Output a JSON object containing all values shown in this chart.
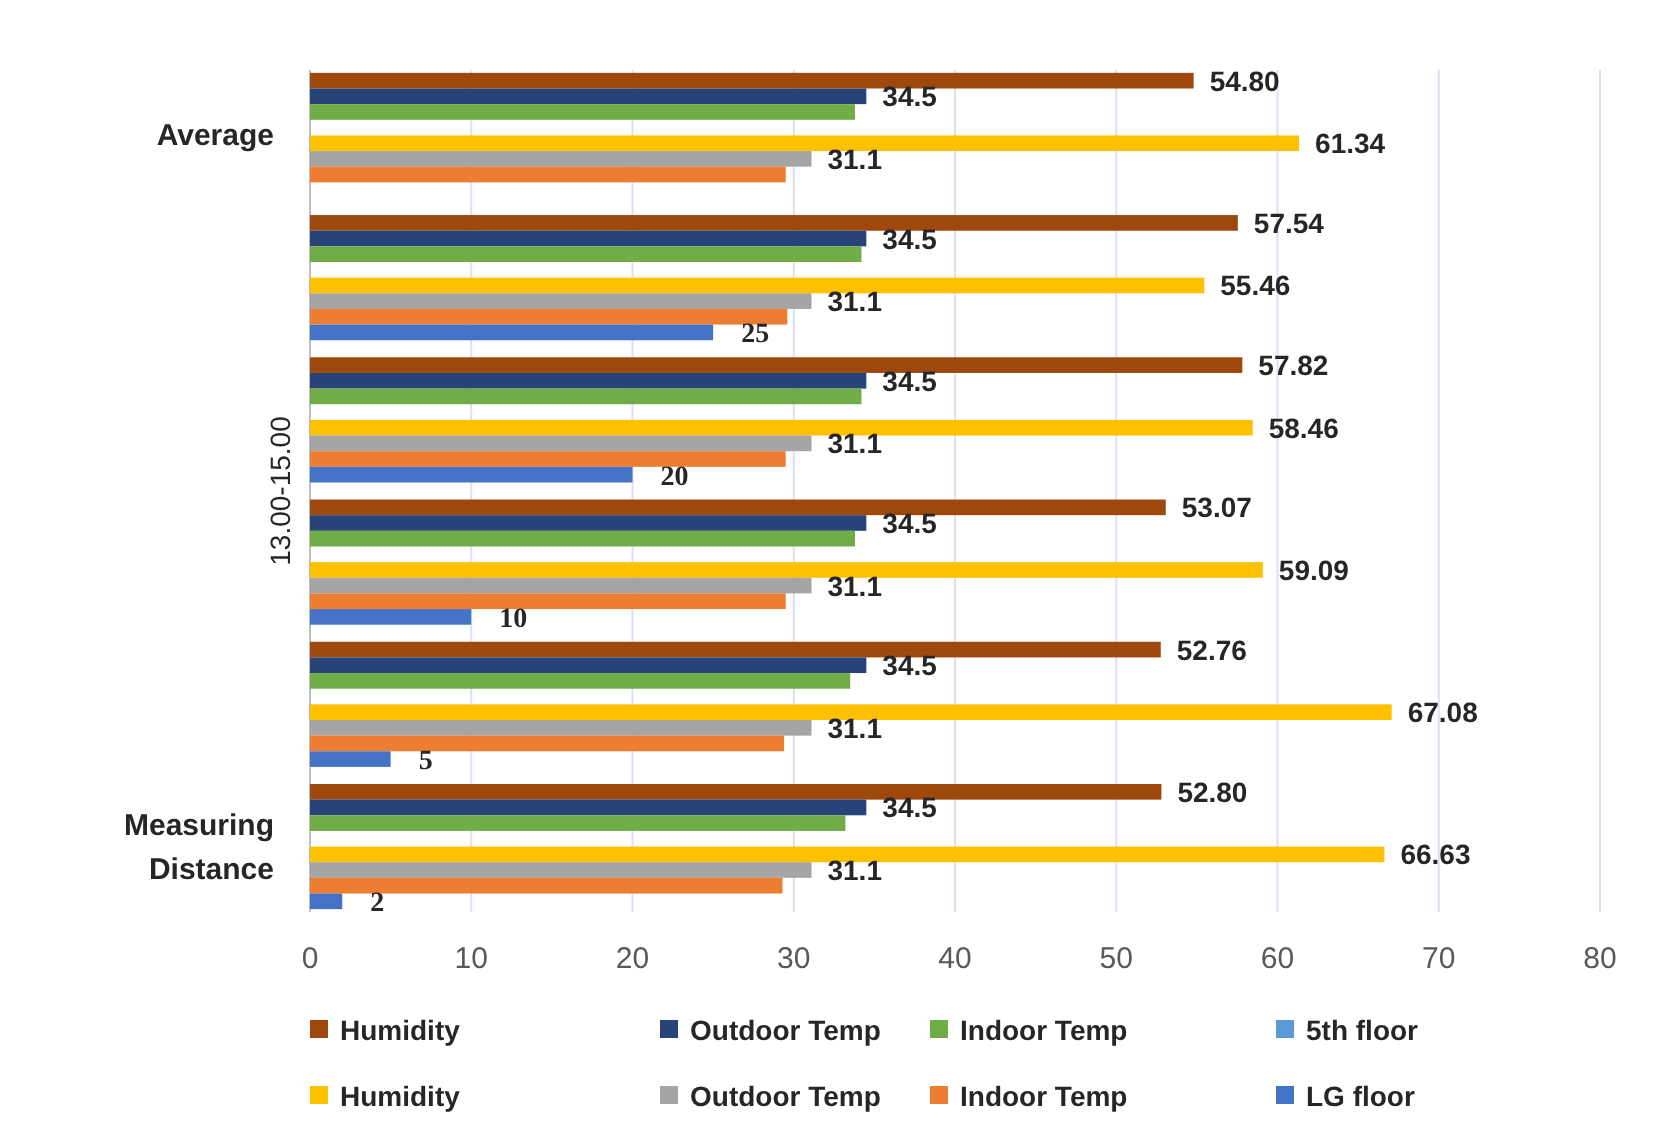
{
  "chart_data": {
    "type": "bar",
    "orientation": "horizontal",
    "ylabel": "13.00-15.00",
    "categories": [
      "Average",
      null,
      null,
      null,
      null,
      "Measuring Distance"
    ],
    "series": [
      {
        "name": "Humidity",
        "color": "#9e480e",
        "values": [
          54.8,
          57.54,
          57.82,
          53.07,
          52.76,
          52.8
        ],
        "value_labels": [
          "54.80",
          "57.54",
          "57.82",
          "53.07",
          "52.76",
          "52.80"
        ]
      },
      {
        "name": "Outdoor Temp",
        "color": "#264478",
        "values": [
          34.5,
          34.5,
          34.5,
          34.5,
          34.5,
          34.5
        ],
        "value_labels": [
          "34.5",
          "34.5",
          "34.5",
          "34.5",
          "34.5",
          "34.5"
        ]
      },
      {
        "name": "Indoor Temp",
        "color": "#70ad47",
        "values": [
          33.8,
          34.2,
          34.2,
          33.8,
          33.5,
          33.2
        ]
      },
      {
        "name": "5th floor",
        "color": "#5b9bd5",
        "values": [
          null,
          null,
          null,
          null,
          null,
          null
        ]
      },
      {
        "name": "Humidity",
        "color": "#ffc000",
        "values": [
          61.34,
          55.46,
          58.46,
          59.09,
          67.08,
          66.63
        ],
        "value_labels": [
          "61.34",
          "55.46",
          "58.46",
          "59.09",
          "67.08",
          "66.63"
        ]
      },
      {
        "name": "Outdoor Temp",
        "color": "#a5a5a5",
        "values": [
          31.1,
          31.1,
          31.1,
          31.1,
          31.1,
          31.1
        ],
        "value_labels": [
          "31.1",
          "31.1",
          "31.1",
          "31.1",
          "31.1",
          "31.1"
        ]
      },
      {
        "name": "Indoor Temp",
        "color": "#ed7d31",
        "values": [
          29.5,
          29.6,
          29.5,
          29.5,
          29.4,
          29.3
        ]
      },
      {
        "name": "LG floor",
        "color": "#4472c4",
        "values": [
          null,
          25,
          20,
          10,
          5,
          2
        ],
        "value_labels": [
          null,
          "25",
          "20",
          "10",
          "5",
          "2"
        ]
      }
    ],
    "xlim": [
      0,
      80
    ],
    "xticks": [
      0,
      10,
      20,
      30,
      40,
      50,
      60,
      70,
      80
    ],
    "grid": "x",
    "legend": "bottom"
  }
}
